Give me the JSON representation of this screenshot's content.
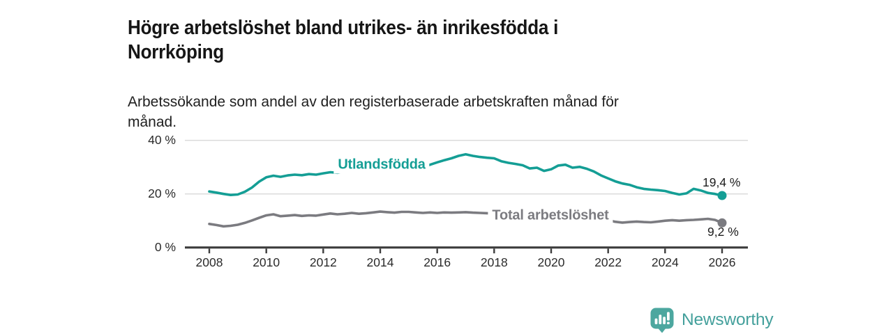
{
  "chart_data": {
    "type": "line",
    "title": "Högre arbetslöshet bland utrikes- än inrikesfödda i Norrköping",
    "subtitle": "Arbetssökande som andel av den registerbaserade arbetskraften månad för månad.",
    "grid": "horizontal",
    "legend": "inline-labels",
    "x_axis": {
      "ticks": [
        2008,
        2010,
        2012,
        2014,
        2016,
        2018,
        2020,
        2022,
        2024,
        2026
      ],
      "range": [
        2007.1,
        2026.9
      ]
    },
    "y_axis": {
      "unit": "%",
      "range": [
        0,
        44
      ],
      "ticks": [
        {
          "value": 0,
          "label": "0 %"
        },
        {
          "value": 20,
          "label": "20 %"
        },
        {
          "value": 40,
          "label": "40 %"
        }
      ]
    },
    "series": [
      {
        "id": "utlandsfodda",
        "name": "Utlandsfödda",
        "color": "#149e95",
        "end_value": 19.4,
        "end_label": "19,4 %",
        "points": [
          [
            2008.0,
            20.9
          ],
          [
            2008.25,
            20.5
          ],
          [
            2008.5,
            20.0
          ],
          [
            2008.75,
            19.6
          ],
          [
            2009.0,
            19.8
          ],
          [
            2009.25,
            20.8
          ],
          [
            2009.5,
            22.4
          ],
          [
            2009.75,
            24.6
          ],
          [
            2010.0,
            26.2
          ],
          [
            2010.25,
            26.8
          ],
          [
            2010.5,
            26.4
          ],
          [
            2010.75,
            26.9
          ],
          [
            2011.0,
            27.2
          ],
          [
            2011.25,
            27.0
          ],
          [
            2011.5,
            27.4
          ],
          [
            2011.75,
            27.2
          ],
          [
            2012.0,
            27.7
          ],
          [
            2012.25,
            28.1
          ],
          [
            2012.5,
            27.9
          ],
          [
            2012.75,
            28.3
          ],
          [
            2013.0,
            28.6
          ],
          [
            2013.25,
            29.0
          ],
          [
            2013.5,
            28.7
          ],
          [
            2013.75,
            29.1
          ],
          [
            2014.0,
            29.4
          ],
          [
            2014.25,
            29.8
          ],
          [
            2014.5,
            29.5
          ],
          [
            2014.75,
            29.9
          ],
          [
            2015.0,
            30.1
          ],
          [
            2015.25,
            30.5
          ],
          [
            2015.5,
            30.2
          ],
          [
            2015.75,
            30.9
          ],
          [
            2016.0,
            31.8
          ],
          [
            2016.25,
            32.6
          ],
          [
            2016.5,
            33.3
          ],
          [
            2016.75,
            34.2
          ],
          [
            2017.0,
            34.8
          ],
          [
            2017.25,
            34.2
          ],
          [
            2017.5,
            33.8
          ],
          [
            2017.75,
            33.5
          ],
          [
            2018.0,
            33.3
          ],
          [
            2018.25,
            32.2
          ],
          [
            2018.5,
            31.6
          ],
          [
            2018.75,
            31.2
          ],
          [
            2019.0,
            30.7
          ],
          [
            2019.25,
            29.5
          ],
          [
            2019.5,
            29.8
          ],
          [
            2019.75,
            28.6
          ],
          [
            2020.0,
            29.2
          ],
          [
            2020.25,
            30.6
          ],
          [
            2020.5,
            30.9
          ],
          [
            2020.75,
            29.8
          ],
          [
            2021.0,
            30.1
          ],
          [
            2021.25,
            29.4
          ],
          [
            2021.5,
            28.4
          ],
          [
            2021.75,
            26.9
          ],
          [
            2022.0,
            25.8
          ],
          [
            2022.25,
            24.7
          ],
          [
            2022.5,
            23.9
          ],
          [
            2022.75,
            23.4
          ],
          [
            2023.0,
            22.5
          ],
          [
            2023.25,
            21.9
          ],
          [
            2023.5,
            21.6
          ],
          [
            2023.75,
            21.4
          ],
          [
            2024.0,
            21.1
          ],
          [
            2024.25,
            20.4
          ],
          [
            2024.5,
            19.8
          ],
          [
            2024.75,
            20.2
          ],
          [
            2025.0,
            21.9
          ],
          [
            2025.25,
            21.3
          ],
          [
            2025.5,
            20.4
          ],
          [
            2025.75,
            20.0
          ],
          [
            2026.0,
            19.4
          ]
        ]
      },
      {
        "id": "total",
        "name": "Total arbetslöshet",
        "color": "#7b7b80",
        "end_value": 9.2,
        "end_label": "9,2 %",
        "points": [
          [
            2008.0,
            8.8
          ],
          [
            2008.25,
            8.4
          ],
          [
            2008.5,
            7.9
          ],
          [
            2008.75,
            8.1
          ],
          [
            2009.0,
            8.5
          ],
          [
            2009.25,
            9.2
          ],
          [
            2009.5,
            10.1
          ],
          [
            2009.75,
            11.1
          ],
          [
            2010.0,
            12.0
          ],
          [
            2010.25,
            12.4
          ],
          [
            2010.5,
            11.7
          ],
          [
            2010.75,
            11.9
          ],
          [
            2011.0,
            12.1
          ],
          [
            2011.25,
            11.8
          ],
          [
            2011.5,
            12.0
          ],
          [
            2011.75,
            11.9
          ],
          [
            2012.0,
            12.3
          ],
          [
            2012.25,
            12.7
          ],
          [
            2012.5,
            12.4
          ],
          [
            2012.75,
            12.6
          ],
          [
            2013.0,
            12.9
          ],
          [
            2013.25,
            12.6
          ],
          [
            2013.5,
            12.8
          ],
          [
            2013.75,
            13.1
          ],
          [
            2014.0,
            13.4
          ],
          [
            2014.25,
            13.2
          ],
          [
            2014.5,
            13.0
          ],
          [
            2014.75,
            13.3
          ],
          [
            2015.0,
            13.3
          ],
          [
            2015.25,
            13.1
          ],
          [
            2015.5,
            12.9
          ],
          [
            2015.75,
            13.1
          ],
          [
            2016.0,
            12.9
          ],
          [
            2016.25,
            13.1
          ],
          [
            2016.5,
            13.0
          ],
          [
            2016.75,
            13.1
          ],
          [
            2017.0,
            13.2
          ],
          [
            2017.25,
            13.0
          ],
          [
            2017.5,
            12.9
          ],
          [
            2017.75,
            12.8
          ],
          [
            2018.0,
            12.7
          ],
          [
            2018.25,
            12.5
          ],
          [
            2018.5,
            12.3
          ],
          [
            2018.75,
            12.1
          ],
          [
            2019.0,
            12.0
          ],
          [
            2019.25,
            11.8
          ],
          [
            2019.5,
            11.6
          ],
          [
            2019.75,
            11.7
          ],
          [
            2020.0,
            11.9
          ],
          [
            2020.25,
            13.0
          ],
          [
            2020.5,
            13.4
          ],
          [
            2020.75,
            12.9
          ],
          [
            2021.0,
            12.4
          ],
          [
            2021.25,
            11.9
          ],
          [
            2021.5,
            11.4
          ],
          [
            2021.75,
            10.8
          ],
          [
            2022.0,
            10.2
          ],
          [
            2022.25,
            9.6
          ],
          [
            2022.5,
            9.3
          ],
          [
            2022.75,
            9.5
          ],
          [
            2023.0,
            9.7
          ],
          [
            2023.25,
            9.5
          ],
          [
            2023.5,
            9.4
          ],
          [
            2023.75,
            9.7
          ],
          [
            2024.0,
            10.0
          ],
          [
            2024.25,
            10.2
          ],
          [
            2024.5,
            10.0
          ],
          [
            2024.75,
            10.2
          ],
          [
            2025.0,
            10.3
          ],
          [
            2025.25,
            10.5
          ],
          [
            2025.5,
            10.7
          ],
          [
            2025.75,
            10.3
          ],
          [
            2026.0,
            9.2
          ]
        ]
      }
    ]
  },
  "branding": {
    "logo_text": "Newsworthy",
    "logo_icon": "newsworthy-speech-bubble-bar-chart-icon",
    "logo_bubble_color": "#4ca79f",
    "logo_text_color": "#44a09c"
  }
}
